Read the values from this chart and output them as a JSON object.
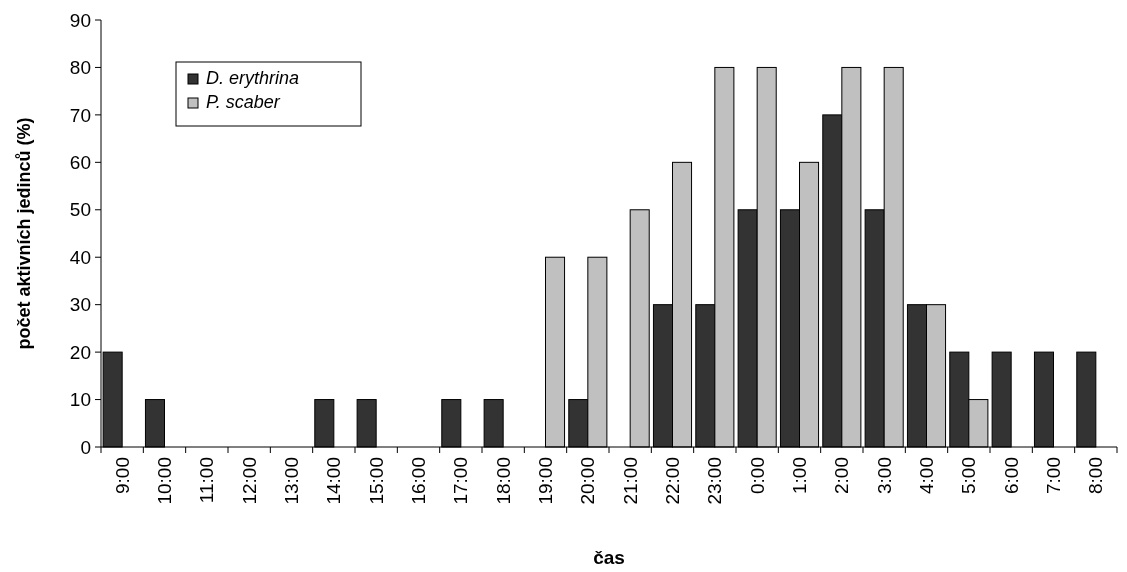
{
  "chart_data": {
    "type": "bar",
    "xlabel": "čas",
    "ylabel": "počet aktivních jedinců (%)",
    "categories": [
      "9:00",
      "10:00",
      "11:00",
      "12:00",
      "13:00",
      "14:00",
      "15:00",
      "16:00",
      "17:00",
      "18:00",
      "19:00",
      "20:00",
      "21:00",
      "22:00",
      "23:00",
      "0:00",
      "1:00",
      "2:00",
      "3:00",
      "4:00",
      "5:00",
      "6:00",
      "7:00",
      "8:00"
    ],
    "series": [
      {
        "name": "D. erythrina",
        "color": "#333333",
        "values": [
          20,
          10,
          0,
          0,
          0,
          10,
          10,
          0,
          10,
          10,
          0,
          10,
          0,
          30,
          30,
          50,
          50,
          70,
          50,
          30,
          20,
          20,
          20,
          20
        ]
      },
      {
        "name": "P. scaber",
        "color": "#c0c0c0",
        "values": [
          0,
          0,
          0,
          0,
          0,
          0,
          0,
          0,
          0,
          0,
          40,
          40,
          50,
          60,
          80,
          80,
          60,
          80,
          80,
          30,
          10,
          0,
          0,
          0
        ]
      }
    ],
    "ylim": [
      0,
      90
    ],
    "yticks": [
      0,
      10,
      20,
      30,
      40,
      50,
      60,
      70,
      80,
      90
    ],
    "grid": false,
    "legend": "top left"
  }
}
